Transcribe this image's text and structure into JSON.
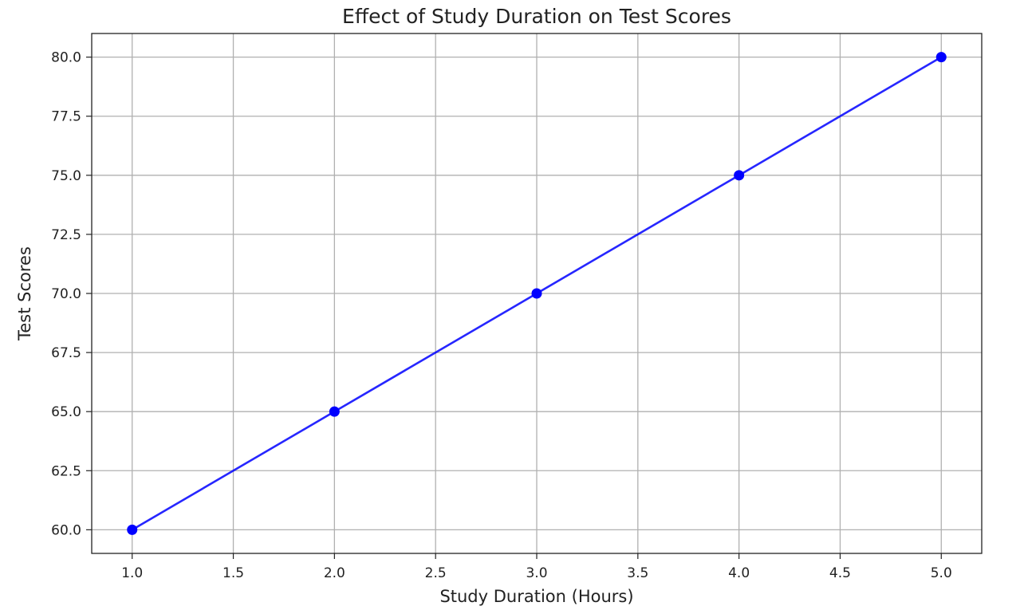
{
  "chart_data": {
    "type": "line",
    "title": "Effect of Study Duration on Test Scores",
    "xlabel": "Study Duration (Hours)",
    "ylabel": "Test Scores",
    "xlim": [
      0.8,
      5.2
    ],
    "ylim": [
      59.0,
      81.0
    ],
    "x_ticks": [
      1.0,
      1.5,
      2.0,
      2.5,
      3.0,
      3.5,
      4.0,
      4.5,
      5.0
    ],
    "x_tick_labels": [
      "1.0",
      "1.5",
      "2.0",
      "2.5",
      "3.0",
      "3.5",
      "4.0",
      "4.5",
      "5.0"
    ],
    "y_ticks": [
      60.0,
      62.5,
      65.0,
      67.5,
      70.0,
      72.5,
      75.0,
      77.5,
      80.0
    ],
    "y_tick_labels": [
      "60.0",
      "62.5",
      "65.0",
      "67.5",
      "70.0",
      "72.5",
      "75.0",
      "77.5",
      "80.0"
    ],
    "grid": true,
    "x": [
      1,
      2,
      3,
      4,
      5
    ],
    "series": [
      {
        "values": [
          60,
          65,
          70,
          75,
          80
        ],
        "color": "#0000ff",
        "marker": "circle"
      }
    ]
  }
}
